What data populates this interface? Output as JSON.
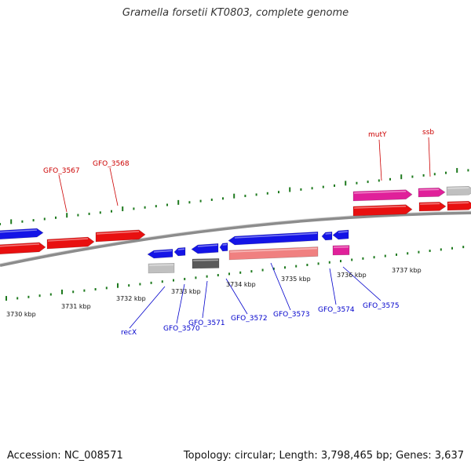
{
  "title": "Gramella forsetii KT0803, complete genome",
  "footer": {
    "accession": "Accession: NC_008571",
    "summary": "Topology: circular; Length: 3,798,465 bp; Genes: 3,637"
  },
  "colors": {
    "backbone": "#8c8c8c",
    "tick": "#1e7a1e",
    "forward_label": "#cc0000",
    "reverse_label": "#0000cc",
    "blue": "#1414e6",
    "red": "#e81010",
    "salmon": "#f08080",
    "magenta": "#e0209a",
    "lightgray": "#c0c0c0",
    "darkgray": "#5a5a5a"
  },
  "scale_labels": [
    "3730 kbp",
    "3731 kbp",
    "3732 kbp",
    "3733 kbp",
    "3734 kbp",
    "3735 kbp",
    "3736 kbp",
    "3737 kbp"
  ],
  "forward_labels": [
    "GFO_3567",
    "GFO_3568",
    "mutY",
    "ssb"
  ],
  "reverse_labels": [
    "recX",
    "GFO_3570",
    "GFO_3571",
    "GFO_3572",
    "GFO_3573",
    "GFO_3574",
    "GFO_3575"
  ]
}
